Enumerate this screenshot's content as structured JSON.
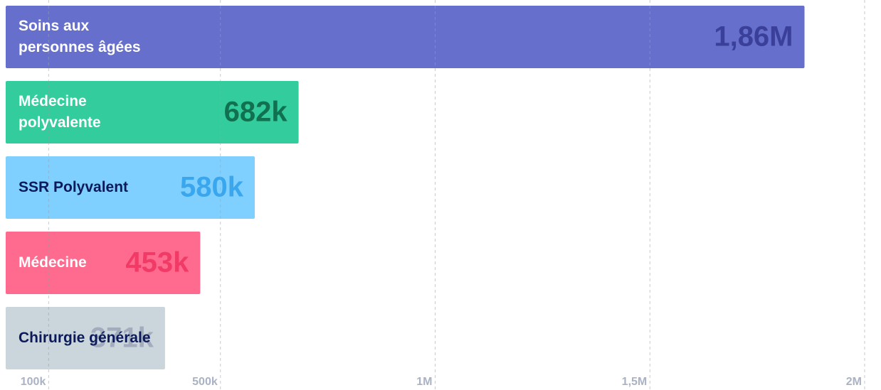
{
  "chart_data": {
    "type": "bar",
    "orientation": "horizontal",
    "categories": [
      "Soins aux personnes âgées",
      "Médecine polyvalente",
      "SSR Polyvalent",
      "Médecine",
      "Chirurgie générale"
    ],
    "values": [
      1860000,
      682000,
      580000,
      453000,
      371000
    ],
    "value_labels": [
      "1,86M",
      "682k",
      "580k",
      "453k",
      "371k"
    ],
    "colors": [
      "#6670cc",
      "#33cc9c",
      "#80d0ff",
      "#ff6b8e",
      "#cbd5dc"
    ],
    "label_colors": [
      "#ffffff",
      "#ffffff",
      "#0c1a5c",
      "#ffffff",
      "#0c1a5c"
    ],
    "value_colors": [
      "#3a3f99",
      "#11704f",
      "#3aa6ee",
      "#f23a66",
      "#a2acbd"
    ],
    "xlim": [
      0,
      2000000
    ],
    "xticks": [
      {
        "value": 100000,
        "label": "100k"
      },
      {
        "value": 500000,
        "label": "500k"
      },
      {
        "value": 1000000,
        "label": "1M"
      },
      {
        "value": 1500000,
        "label": "1,5M"
      },
      {
        "value": 2000000,
        "label": "2M"
      }
    ],
    "grid": true
  }
}
